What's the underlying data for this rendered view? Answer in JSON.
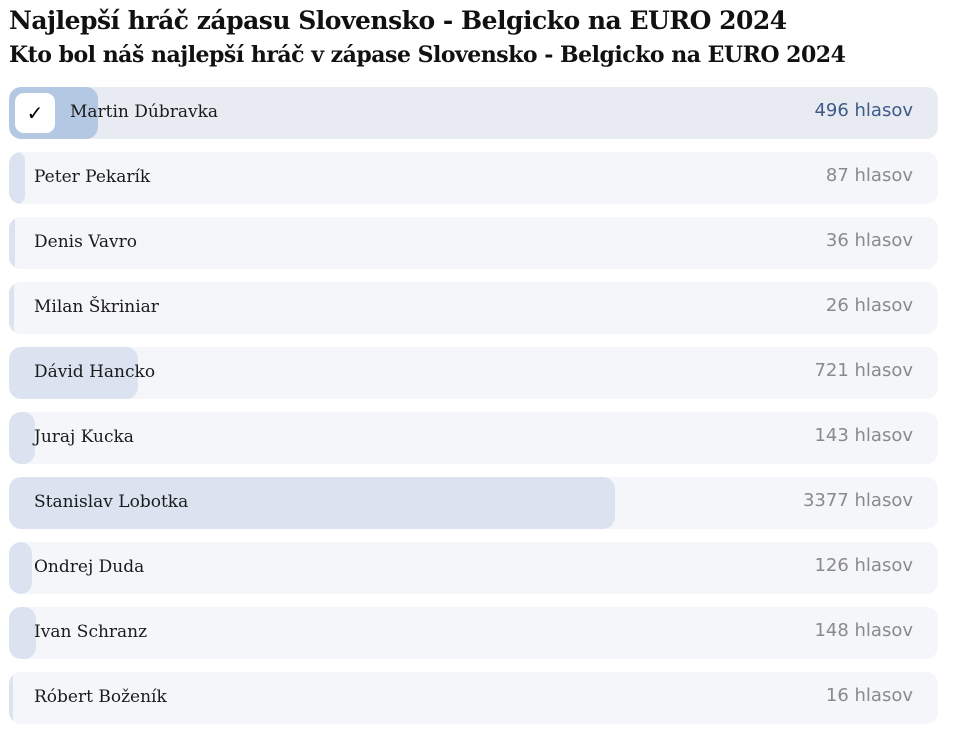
{
  "title": "Najlepší hráč zápasu Slovensko - Belgicko na EURO 2024",
  "subtitle": "Kto bol náš najlepší hráč v zápase Slovensko - Belgicko na EURO 2024",
  "vote_suffix": "hlasov",
  "check_icon": "✓",
  "colors": {
    "fill": "#dae3ef",
    "selected_fill": "#b4c8e4",
    "selected_text": "#3d5a8a"
  },
  "options": [
    {
      "name": "Martin Dúbravka",
      "votes": 496,
      "votes_label": "496 hlasov",
      "selected": true
    },
    {
      "name": "Peter Pekarík",
      "votes": 87,
      "votes_label": "87 hlasov"
    },
    {
      "name": "Denis Vavro",
      "votes": 36,
      "votes_label": "36 hlasov"
    },
    {
      "name": "Milan Škriniar",
      "votes": 26,
      "votes_label": "26 hlasov"
    },
    {
      "name": "Dávid Hancko",
      "votes": 721,
      "votes_label": "721 hlasov"
    },
    {
      "name": "Juraj Kucka",
      "votes": 143,
      "votes_label": "143 hlasov"
    },
    {
      "name": "Stanislav Lobotka",
      "votes": 3377,
      "votes_label": "3377 hlasov"
    },
    {
      "name": "Ondrej Duda",
      "votes": 126,
      "votes_label": "126 hlasov"
    },
    {
      "name": "Ivan Schranz",
      "votes": 148,
      "votes_label": "148 hlasov"
    },
    {
      "name": "Róbert Boženík",
      "votes": 16,
      "votes_label": "16 hlasov"
    }
  ]
}
